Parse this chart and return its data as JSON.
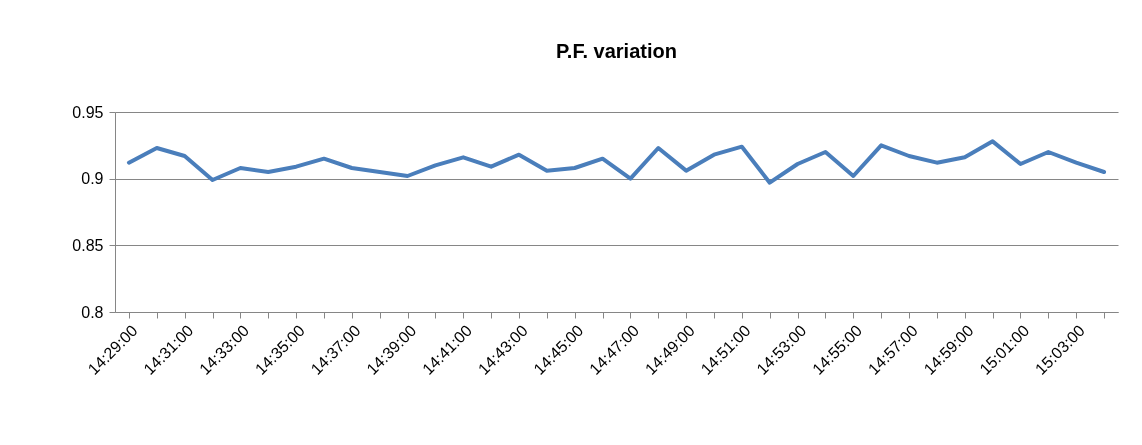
{
  "chart_data": {
    "type": "line",
    "title": "P.F. variation",
    "categories": [
      "14:29:00",
      null,
      "14:31:00",
      null,
      "14:33:00",
      null,
      "14:35:00",
      null,
      "14:37:00",
      null,
      "14:39:00",
      null,
      "14:41:00",
      null,
      "14:43:00",
      null,
      "14:45:00",
      null,
      "14:47:00",
      null,
      "14:49:00",
      null,
      "14:51:00",
      null,
      "14:53:00",
      null,
      "14:55:00",
      null,
      "14:57:00",
      null,
      "14:59:00",
      null,
      "15:01:00",
      null,
      "15:03:00",
      null
    ],
    "series": [
      {
        "color": "#4a7ebb",
        "values": [
          0.912,
          0.923,
          0.917,
          0.899,
          0.908,
          0.905,
          0.909,
          0.915,
          0.908,
          0.905,
          0.902,
          0.91,
          0.916,
          0.909,
          0.918,
          0.906,
          0.908,
          0.915,
          0.9,
          0.923,
          0.906,
          0.918,
          0.924,
          0.897,
          0.911,
          0.92,
          0.902,
          0.925,
          0.917,
          0.912,
          0.916,
          0.928,
          0.911,
          0.92,
          0.912,
          0.905
        ]
      }
    ],
    "ylim": [
      0.8,
      0.95
    ],
    "yticks": [
      0.8,
      0.85,
      0.9,
      0.95
    ],
    "grid": "y",
    "legend": false,
    "marker": "none",
    "line_style": "solid"
  }
}
